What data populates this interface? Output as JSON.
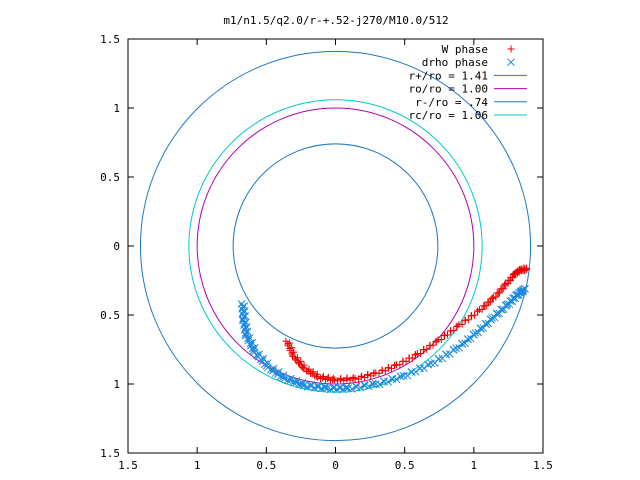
{
  "chart_data": {
    "type": "line",
    "title": "m1/n1.5/q2.0/r-+.52-j270/M10.0/512",
    "xlabel": "",
    "ylabel": "",
    "xlim": [
      -1.5,
      1.5
    ],
    "ylim": [
      -1.5,
      1.5
    ],
    "grid": false,
    "legend_position": "top-right",
    "x_ticks": [
      {
        "value": -1.5,
        "label": "1.5"
      },
      {
        "value": -1.0,
        "label": "1"
      },
      {
        "value": -0.5,
        "label": "0.5"
      },
      {
        "value": 0.0,
        "label": "0"
      },
      {
        "value": 0.5,
        "label": "0.5"
      },
      {
        "value": 1.0,
        "label": "1"
      },
      {
        "value": 1.5,
        "label": "1.5"
      }
    ],
    "y_ticks": [
      {
        "value": 1.5,
        "label": "1.5"
      },
      {
        "value": 1.0,
        "label": "1"
      },
      {
        "value": 0.5,
        "label": "0.5"
      },
      {
        "value": 0.0,
        "label": "0"
      },
      {
        "value": -0.5,
        "label": "0.5"
      },
      {
        "value": -1.0,
        "label": "1"
      },
      {
        "value": -1.5,
        "label": "1.5"
      }
    ],
    "curves": [
      {
        "name": "r+/ro = 1.41",
        "kind": "circle",
        "radius": 1.41,
        "color": "#1f77c4"
      },
      {
        "name": "ro/ro = 1.00",
        "kind": "circle",
        "radius": 1.0,
        "color": "#b000b0"
      },
      {
        "name": "r-/ro = .74",
        "kind": "circle",
        "radius": 0.74,
        "color": "#1f77c4"
      },
      {
        "name": "rc/ro = 1.06",
        "kind": "circle",
        "radius": 1.06,
        "color": "#00c8d0"
      }
    ],
    "scatter": [
      {
        "name": "W phase",
        "marker": "+",
        "color": "#ee0000",
        "points": [
          [
            -0.35,
            -0.69
          ],
          [
            -0.3,
            -0.8
          ],
          [
            -0.22,
            -0.89
          ],
          [
            -0.12,
            -0.95
          ],
          [
            0.0,
            -0.97
          ],
          [
            0.15,
            -0.96
          ],
          [
            0.3,
            -0.92
          ],
          [
            0.45,
            -0.86
          ],
          [
            0.6,
            -0.78
          ],
          [
            0.75,
            -0.68
          ],
          [
            0.9,
            -0.57
          ],
          [
            1.05,
            -0.46
          ],
          [
            1.15,
            -0.37
          ],
          [
            1.24,
            -0.27
          ],
          [
            1.3,
            -0.2
          ],
          [
            1.34,
            -0.17
          ],
          [
            1.38,
            -0.17
          ]
        ]
      },
      {
        "name": "drho phase",
        "marker": "x",
        "color": "#1a8ae0",
        "points": [
          [
            -0.67,
            -0.42
          ],
          [
            -0.66,
            -0.54
          ],
          [
            -0.64,
            -0.65
          ],
          [
            -0.58,
            -0.77
          ],
          [
            -0.48,
            -0.88
          ],
          [
            -0.36,
            -0.96
          ],
          [
            -0.22,
            -1.01
          ],
          [
            -0.05,
            -1.03
          ],
          [
            0.1,
            -1.03
          ],
          [
            0.3,
            -1.0
          ],
          [
            0.5,
            -0.94
          ],
          [
            0.7,
            -0.85
          ],
          [
            0.88,
            -0.74
          ],
          [
            1.02,
            -0.63
          ],
          [
            1.14,
            -0.52
          ],
          [
            1.25,
            -0.42
          ],
          [
            1.32,
            -0.35
          ],
          [
            1.37,
            -0.31
          ]
        ]
      }
    ]
  }
}
